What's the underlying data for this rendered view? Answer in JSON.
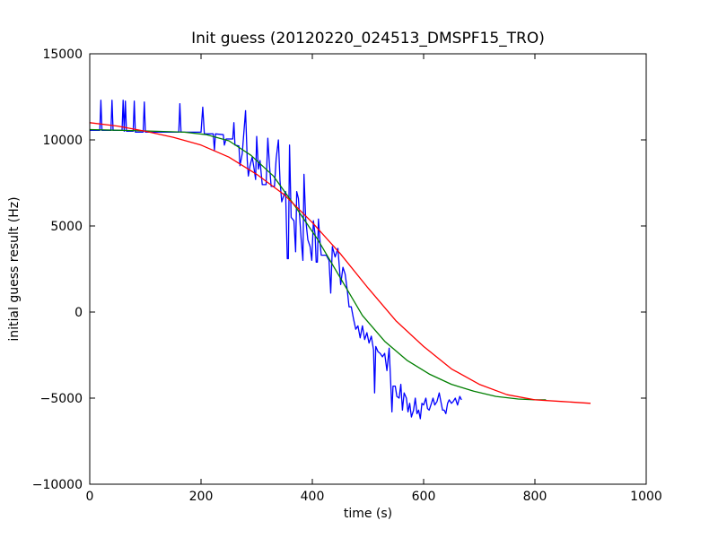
{
  "chart_data": {
    "type": "line",
    "title": "Init guess (20120220_024513_DMSPF15_TRO)",
    "xlabel": "time (s)",
    "ylabel": "initial guess result (Hz)",
    "xlim": [
      0,
      1000
    ],
    "ylim": [
      -10000,
      15000
    ],
    "x_ticks": [
      0,
      200,
      400,
      600,
      800,
      1000
    ],
    "y_ticks": [
      -10000,
      -5000,
      0,
      5000,
      10000,
      15000
    ],
    "x_tick_labels": [
      "0",
      "200",
      "400",
      "600",
      "800",
      "1000"
    ],
    "y_tick_labels": [
      "−10000",
      "−5000",
      "0",
      "5000",
      "10000",
      "15000"
    ],
    "grid": false,
    "series": [
      {
        "color": "#0000ff",
        "points": [
          [
            0,
            10550
          ],
          [
            18,
            10550
          ],
          [
            20,
            12300
          ],
          [
            22,
            10550
          ],
          [
            38,
            10550
          ],
          [
            40,
            12300
          ],
          [
            42,
            10550
          ],
          [
            58,
            10550
          ],
          [
            60,
            12300
          ],
          [
            62,
            10500
          ],
          [
            64,
            12250
          ],
          [
            66,
            10500
          ],
          [
            78,
            10500
          ],
          [
            80,
            12250
          ],
          [
            82,
            10450
          ],
          [
            96,
            10450
          ],
          [
            98,
            12200
          ],
          [
            100,
            10450
          ],
          [
            160,
            10450
          ],
          [
            162,
            12100
          ],
          [
            164,
            10450
          ],
          [
            200,
            10450
          ],
          [
            203,
            11900
          ],
          [
            206,
            10350
          ],
          [
            222,
            10350
          ],
          [
            224,
            9400
          ],
          [
            226,
            10350
          ],
          [
            240,
            10300
          ],
          [
            242,
            9700
          ],
          [
            245,
            10050
          ],
          [
            257,
            10050
          ],
          [
            259,
            11000
          ],
          [
            261,
            9700
          ],
          [
            268,
            9650
          ],
          [
            270,
            8500
          ],
          [
            274,
            9200
          ],
          [
            280,
            11700
          ],
          [
            283,
            8800
          ],
          [
            285,
            7900
          ],
          [
            288,
            8500
          ],
          [
            292,
            9000
          ],
          [
            295,
            8400
          ],
          [
            298,
            7700
          ],
          [
            300,
            10200
          ],
          [
            303,
            8300
          ],
          [
            306,
            8800
          ],
          [
            310,
            7400
          ],
          [
            317,
            7400
          ],
          [
            320,
            10100
          ],
          [
            323,
            8500
          ],
          [
            326,
            7300
          ],
          [
            332,
            7300
          ],
          [
            335,
            8900
          ],
          [
            339,
            10000
          ],
          [
            342,
            7600
          ],
          [
            345,
            6400
          ],
          [
            349,
            6800
          ],
          [
            352,
            7000
          ],
          [
            355,
            3100
          ],
          [
            357,
            3100
          ],
          [
            359,
            9700
          ],
          [
            362,
            5500
          ],
          [
            367,
            5300
          ],
          [
            370,
            3500
          ],
          [
            372,
            7000
          ],
          [
            375,
            6600
          ],
          [
            380,
            4200
          ],
          [
            383,
            3000
          ],
          [
            385,
            8000
          ],
          [
            388,
            5400
          ],
          [
            392,
            4200
          ],
          [
            396,
            3800
          ],
          [
            399,
            3000
          ],
          [
            402,
            5300
          ],
          [
            405,
            4500
          ],
          [
            407,
            2900
          ],
          [
            409,
            2900
          ],
          [
            411,
            5400
          ],
          [
            414,
            4000
          ],
          [
            416,
            3300
          ],
          [
            425,
            3300
          ],
          [
            430,
            3000
          ],
          [
            433,
            1100
          ],
          [
            436,
            3800
          ],
          [
            441,
            3200
          ],
          [
            446,
            3700
          ],
          [
            451,
            1600
          ],
          [
            455,
            2600
          ],
          [
            459,
            2200
          ],
          [
            463,
            1200
          ],
          [
            466,
            300
          ],
          [
            470,
            300
          ],
          [
            474,
            -400
          ],
          [
            478,
            -1000
          ],
          [
            482,
            -800
          ],
          [
            486,
            -1500
          ],
          [
            490,
            -800
          ],
          [
            494,
            -1600
          ],
          [
            498,
            -1200
          ],
          [
            502,
            -1800
          ],
          [
            506,
            -1400
          ],
          [
            510,
            -2200
          ],
          [
            512,
            -4700
          ],
          [
            514,
            -2000
          ],
          [
            518,
            -2300
          ],
          [
            522,
            -2400
          ],
          [
            526,
            -2600
          ],
          [
            530,
            -2400
          ],
          [
            534,
            -3400
          ],
          [
            538,
            -2100
          ],
          [
            541,
            -4200
          ],
          [
            543,
            -5800
          ],
          [
            545,
            -4300
          ],
          [
            549,
            -4300
          ],
          [
            552,
            -4900
          ],
          [
            556,
            -5000
          ],
          [
            559,
            -4200
          ],
          [
            562,
            -5700
          ],
          [
            565,
            -4700
          ],
          [
            569,
            -5000
          ],
          [
            572,
            -5800
          ],
          [
            575,
            -5300
          ],
          [
            578,
            -6100
          ],
          [
            582,
            -5700
          ],
          [
            585,
            -5000
          ],
          [
            588,
            -5900
          ],
          [
            591,
            -5700
          ],
          [
            594,
            -6200
          ],
          [
            597,
            -5300
          ],
          [
            600,
            -5400
          ],
          [
            604,
            -5000
          ],
          [
            607,
            -5600
          ],
          [
            610,
            -5700
          ],
          [
            614,
            -5300
          ],
          [
            617,
            -5000
          ],
          [
            620,
            -5400
          ],
          [
            624,
            -5200
          ],
          [
            628,
            -4700
          ],
          [
            631,
            -5200
          ],
          [
            634,
            -5700
          ],
          [
            637,
            -5700
          ],
          [
            640,
            -5900
          ],
          [
            643,
            -5300
          ],
          [
            646,
            -5100
          ],
          [
            650,
            -5300
          ],
          [
            653,
            -5200
          ],
          [
            657,
            -5000
          ],
          [
            661,
            -5400
          ],
          [
            665,
            -4900
          ],
          [
            668,
            -5100
          ]
        ]
      },
      {
        "color": "#007f00",
        "points": [
          [
            0,
            10600
          ],
          [
            60,
            10550
          ],
          [
            120,
            10500
          ],
          [
            170,
            10450
          ],
          [
            210,
            10300
          ],
          [
            250,
            9950
          ],
          [
            290,
            9100
          ],
          [
            330,
            7900
          ],
          [
            370,
            6100
          ],
          [
            410,
            4200
          ],
          [
            450,
            2000
          ],
          [
            490,
            -200
          ],
          [
            530,
            -1700
          ],
          [
            570,
            -2800
          ],
          [
            610,
            -3600
          ],
          [
            650,
            -4200
          ],
          [
            690,
            -4600
          ],
          [
            730,
            -4900
          ],
          [
            770,
            -5050
          ],
          [
            800,
            -5100
          ],
          [
            820,
            -5100
          ]
        ]
      },
      {
        "color": "#ff0000",
        "points": [
          [
            0,
            11000
          ],
          [
            50,
            10800
          ],
          [
            100,
            10500
          ],
          [
            150,
            10150
          ],
          [
            200,
            9700
          ],
          [
            250,
            9000
          ],
          [
            300,
            8000
          ],
          [
            350,
            6800
          ],
          [
            400,
            5200
          ],
          [
            450,
            3400
          ],
          [
            500,
            1400
          ],
          [
            550,
            -500
          ],
          [
            600,
            -2000
          ],
          [
            650,
            -3300
          ],
          [
            700,
            -4200
          ],
          [
            750,
            -4800
          ],
          [
            800,
            -5100
          ],
          [
            850,
            -5200
          ],
          [
            900,
            -5300
          ]
        ]
      }
    ]
  }
}
